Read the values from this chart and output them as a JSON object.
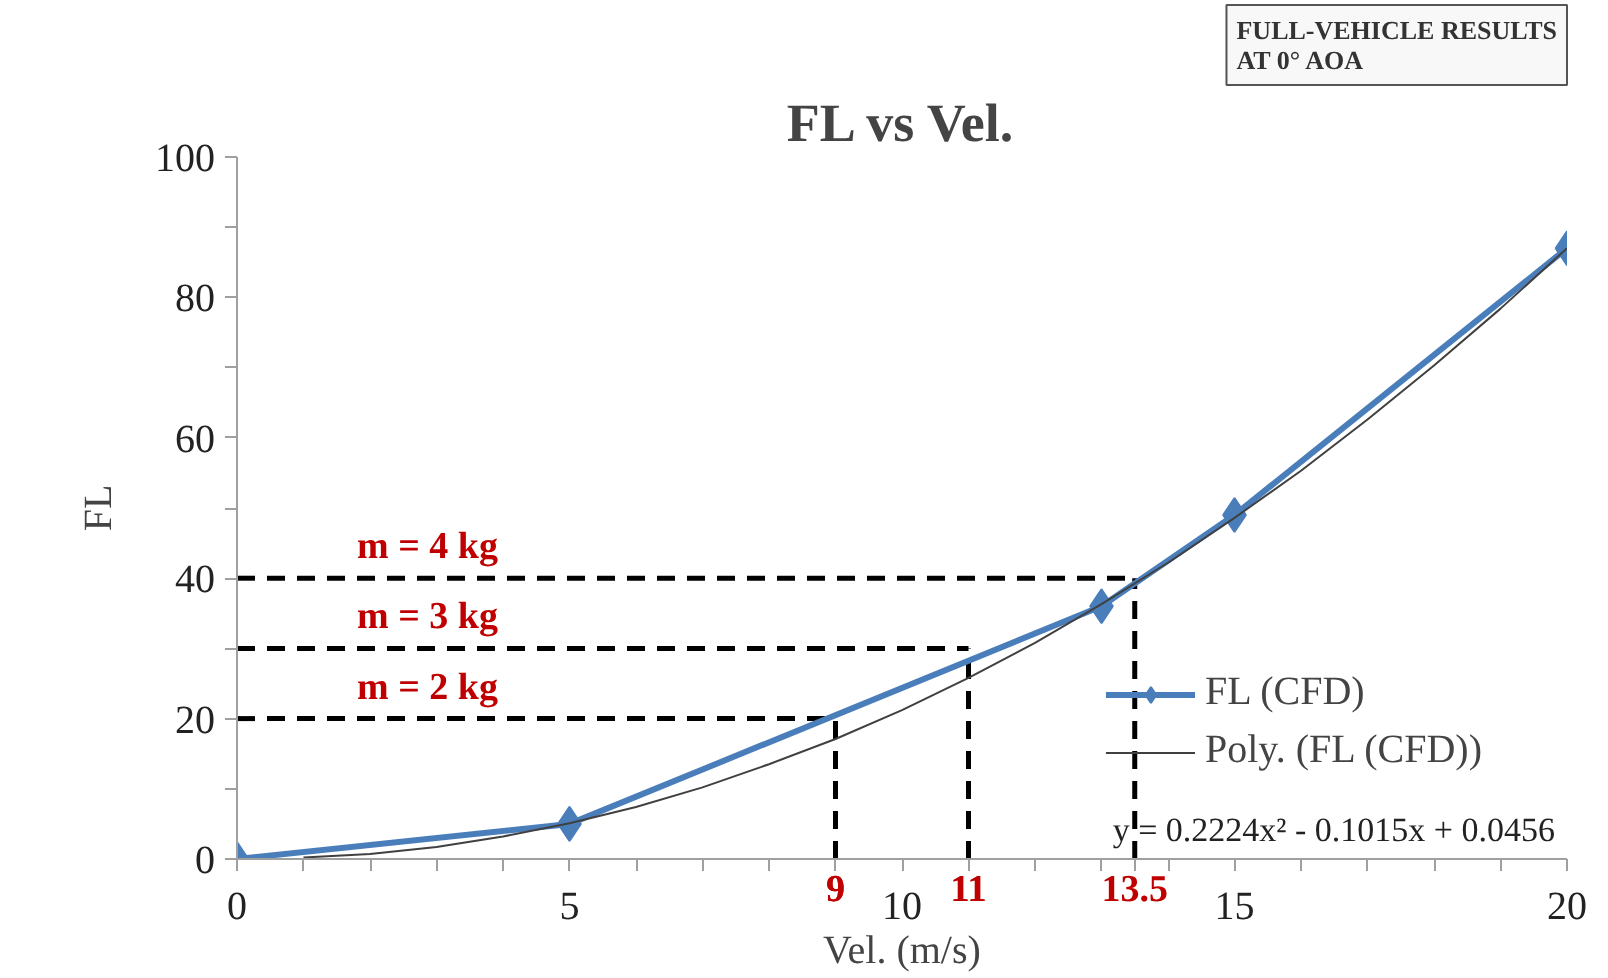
{
  "chart_data": {
    "type": "line",
    "title": "FL vs Vel.",
    "xlabel": "Vel. (m/s)",
    "ylabel": "FL",
    "xlim": [
      0,
      20
    ],
    "xticks": [
      0,
      {
        "value": 1,
        "label": null
      },
      {
        "value": 2,
        "label": null
      },
      {
        "value": 3,
        "label": null
      },
      {
        "value": 4,
        "label": null
      },
      5,
      {
        "value": 6,
        "label": null
      },
      {
        "value": 7,
        "label": null
      },
      {
        "value": 8,
        "label": null
      },
      {
        "value": 9,
        "label": null
      },
      10,
      {
        "value": 11,
        "label": null
      },
      {
        "value": 12,
        "label": null
      },
      {
        "value": 13,
        "label": null
      },
      {
        "value": 14,
        "label": null
      },
      15,
      {
        "value": 16,
        "label": null
      },
      {
        "value": 17,
        "label": null
      },
      {
        "value": 18,
        "label": null
      },
      {
        "value": 19,
        "label": null
      },
      20
    ],
    "ylim": [
      0,
      100
    ],
    "yticks": [
      0,
      {
        "value": 10,
        "label": null
      },
      20,
      {
        "value": 30,
        "label": null
      },
      40,
      {
        "value": 50,
        "label": null
      },
      60,
      {
        "value": 70,
        "label": null
      },
      80,
      {
        "value": 90,
        "label": null
      },
      100
    ],
    "series": [
      {
        "name": "FL (CFD)",
        "color": "#4a7ebb",
        "x": [
          0,
          5,
          13,
          15,
          20
        ],
        "values": [
          0,
          5,
          36,
          49,
          87
        ],
        "marker": "diamond",
        "line_style": "solid"
      },
      {
        "name": "Poly. (FL (CFD))",
        "color": "#404040",
        "x": [
          1,
          2,
          3,
          4,
          5,
          6,
          7,
          8,
          9,
          10,
          11,
          12,
          13,
          14,
          15,
          16,
          17,
          18,
          19,
          20
        ],
        "values": [
          0.2,
          0.7,
          1.7,
          3.2,
          5.1,
          7.4,
          10.2,
          13.5,
          17.1,
          21.2,
          25.8,
          30.8,
          36.3,
          42.2,
          48.6,
          55.3,
          62.6,
          70.3,
          78.4,
          87.0
        ],
        "marker": "none",
        "line_style": "solid"
      }
    ],
    "ref_lines": [
      {
        "axis": "y",
        "value": 20,
        "color": "#000000",
        "line_style": "dashed"
      },
      {
        "axis": "y",
        "value": 30,
        "color": "#000000",
        "line_style": "dashed"
      },
      {
        "axis": "y",
        "value": 40,
        "color": "#000000",
        "line_style": "dashed"
      },
      {
        "axis": "x",
        "value": 9,
        "label": "9",
        "color": "#000000",
        "line_style": "dashed"
      },
      {
        "axis": "x",
        "value": 11,
        "label": "11",
        "color": "#000000",
        "line_style": "dashed"
      },
      {
        "axis": "x",
        "value": 13.5,
        "label": "13.5",
        "color": "#000000",
        "line_style": "dashed"
      }
    ],
    "annotations": [
      "FULL-VEHICLE RESULTS\nAT 0° AOA",
      "y = 0.2224x² - 0.1015x + 0.0456",
      {
        "text": "m = 2 kg",
        "y": 20
      },
      {
        "text": "m = 3 kg",
        "y": 30
      },
      {
        "text": "m = 4 kg",
        "y": 40
      }
    ],
    "legend": "bottom right",
    "grid": false
  }
}
